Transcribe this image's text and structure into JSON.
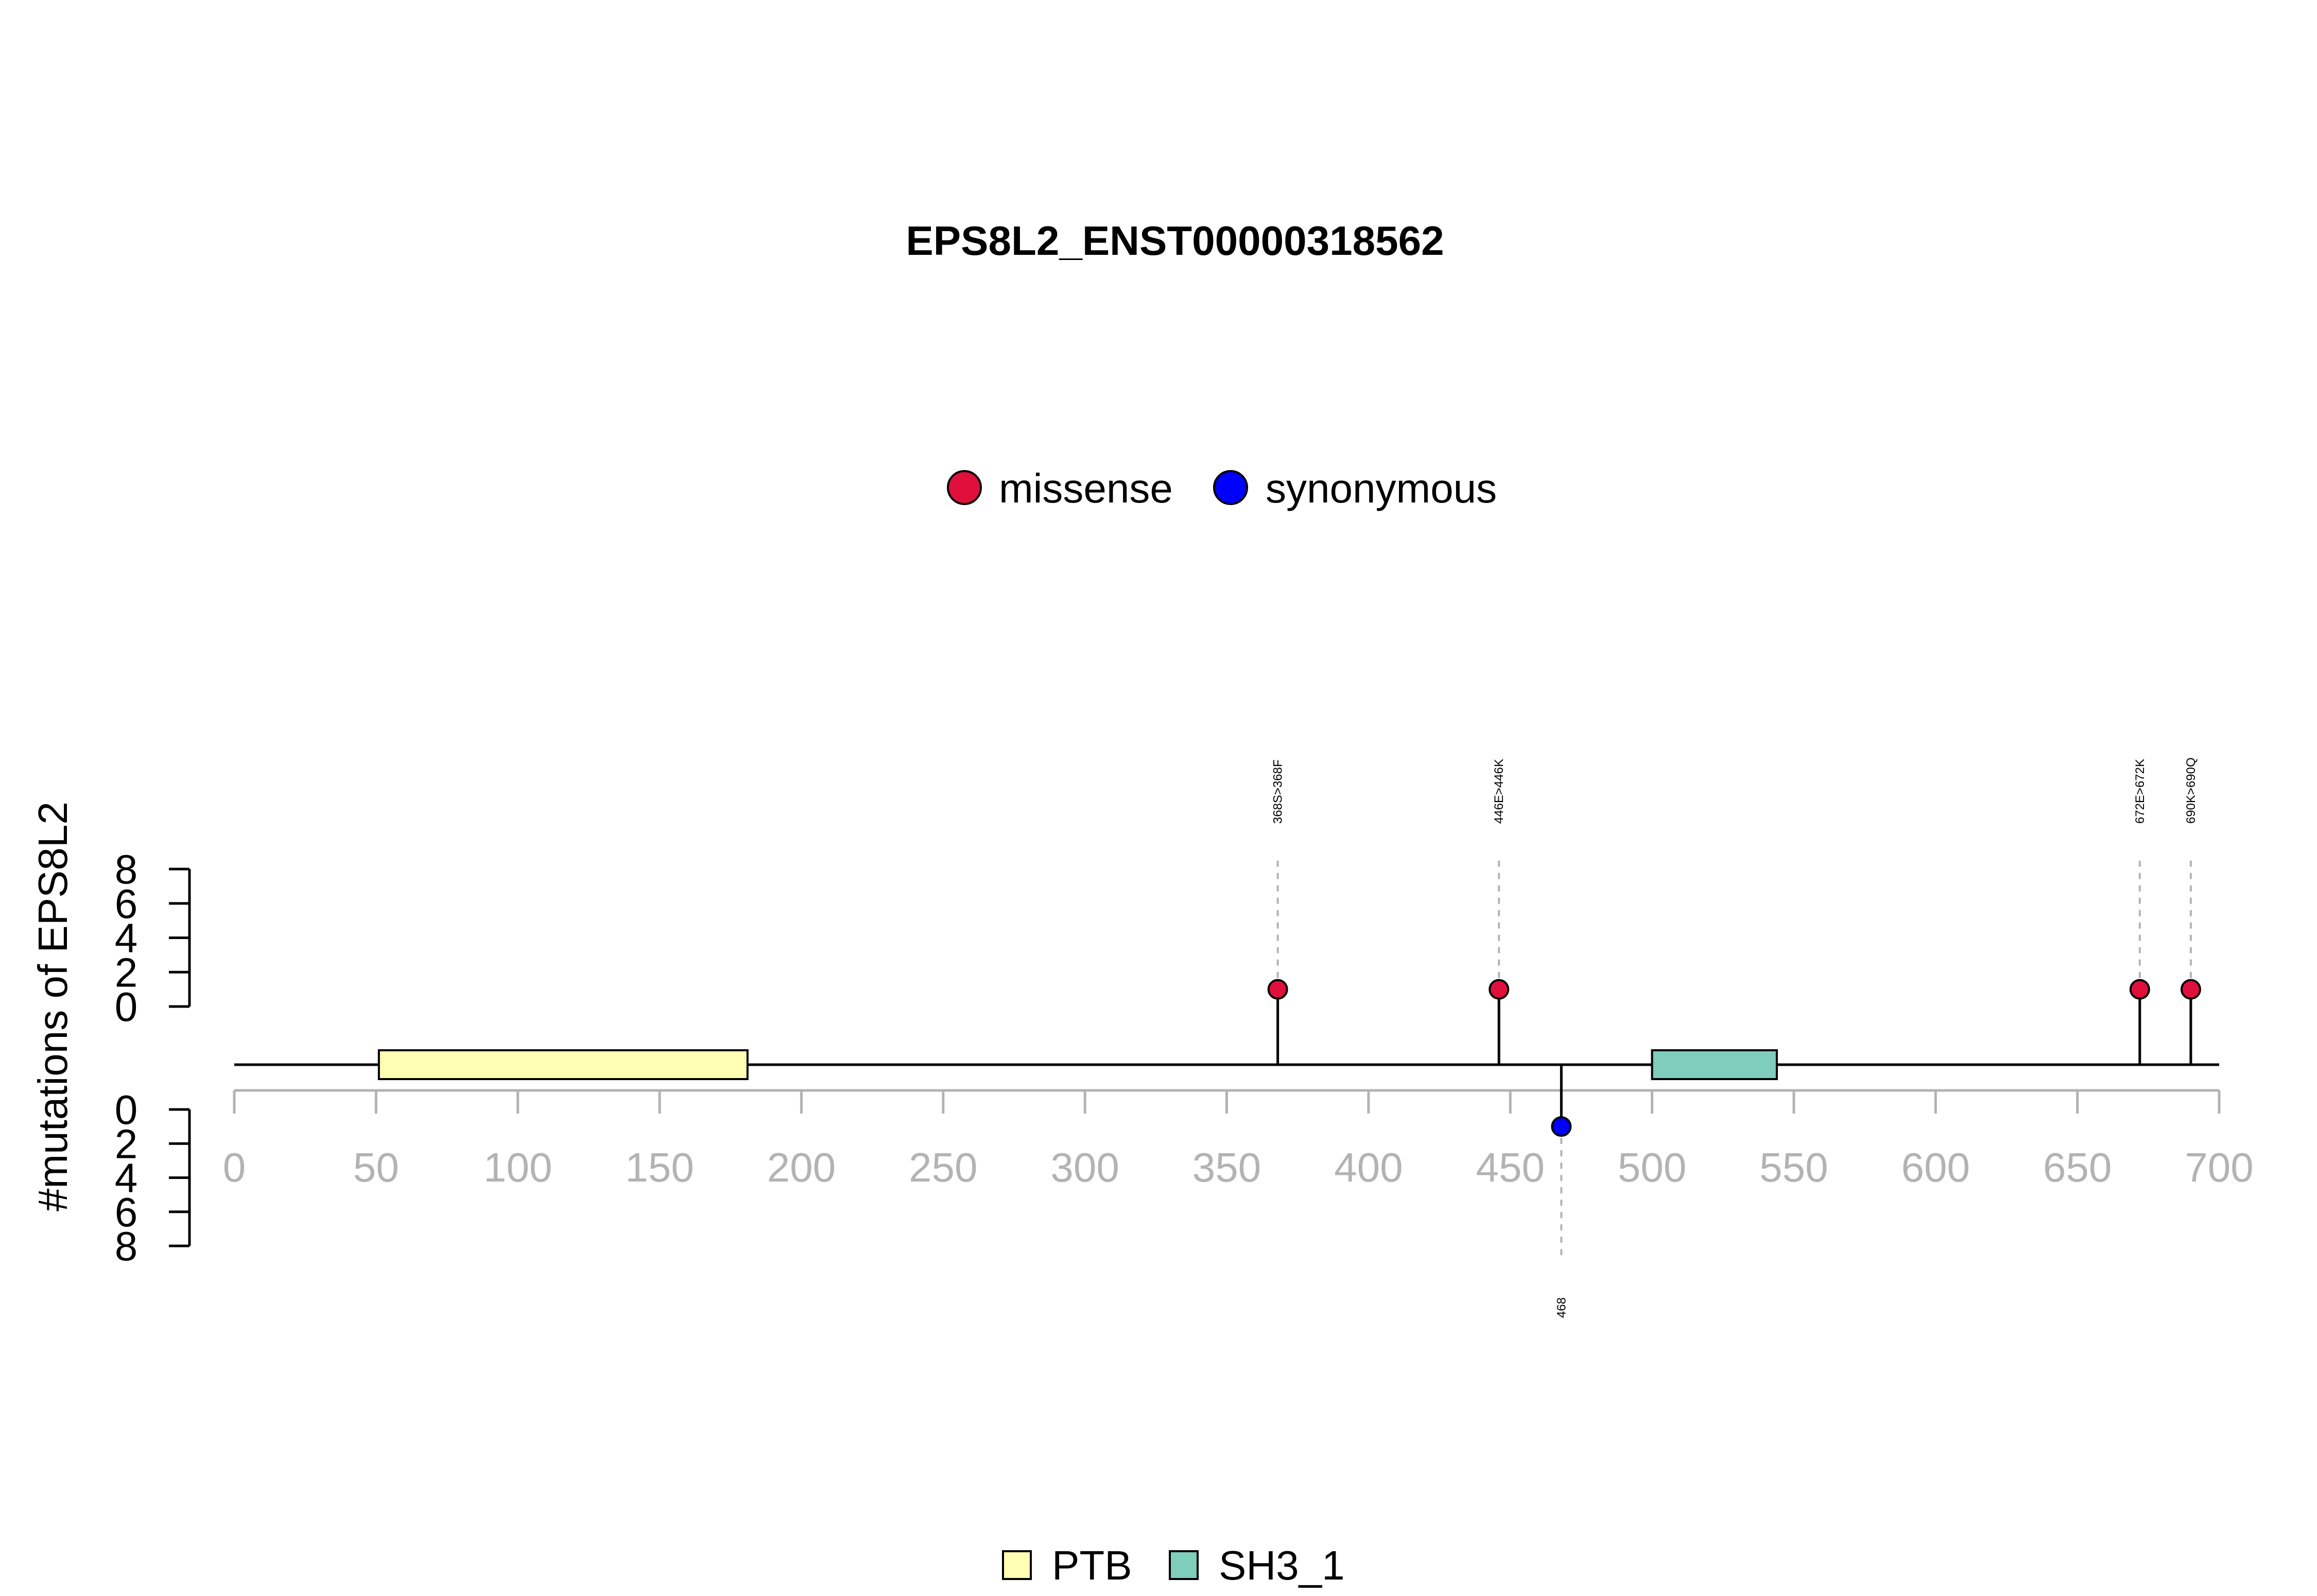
{
  "chart_data": {
    "type": "lollipop",
    "title": "EPS8L2_ENST00000318562",
    "ylabel": "#mutations of EPS8L2",
    "xlim": [
      0,
      700
    ],
    "x_ticks": [
      0,
      50,
      100,
      150,
      200,
      250,
      300,
      350,
      400,
      450,
      500,
      550,
      600,
      650,
      700
    ],
    "ylim_top": [
      0,
      8
    ],
    "ylim_bottom": [
      0,
      8
    ],
    "y_ticks_top": [
      0,
      2,
      4,
      6,
      8
    ],
    "y_ticks_bottom": [
      0,
      2,
      4,
      6,
      8
    ],
    "mutation_legend": [
      {
        "label": "missense",
        "color": "#e0103c"
      },
      {
        "label": "synonymous",
        "color": "#0000ff"
      }
    ],
    "domain_legend": [
      {
        "label": "PTB",
        "color": "#ffffb3"
      },
      {
        "label": "SH3_1",
        "color": "#7fcdbb"
      }
    ],
    "domains": [
      {
        "name": "PTB",
        "start": 51,
        "end": 181,
        "color": "#ffffb3"
      },
      {
        "name": "SH3_1",
        "start": 500,
        "end": 544,
        "color": "#7fcdbb"
      }
    ],
    "mutations": [
      {
        "position": 368,
        "label": "368S>368F",
        "count": 1,
        "type": "missense",
        "side": "top"
      },
      {
        "position": 446,
        "label": "446E>446K",
        "count": 1,
        "type": "missense",
        "side": "top"
      },
      {
        "position": 672,
        "label": "672E>672K",
        "count": 1,
        "type": "missense",
        "side": "top"
      },
      {
        "position": 690,
        "label": "690K>690Q",
        "count": 1,
        "type": "missense",
        "side": "top"
      },
      {
        "position": 468,
        "label": "468",
        "count": 1,
        "type": "synonymous",
        "side": "bottom"
      }
    ],
    "grid": false,
    "legend_placement": "top-center and bottom-center"
  }
}
